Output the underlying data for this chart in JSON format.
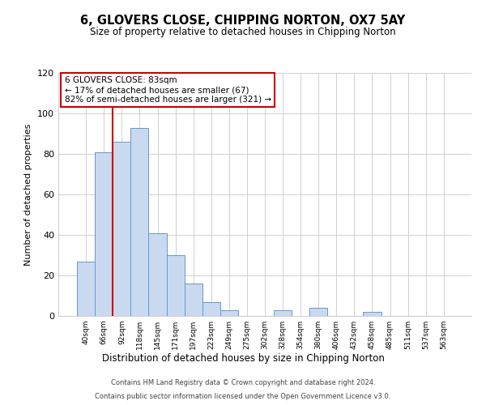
{
  "title": "6, GLOVERS CLOSE, CHIPPING NORTON, OX7 5AY",
  "subtitle": "Size of property relative to detached houses in Chipping Norton",
  "xlabel": "Distribution of detached houses by size in Chipping Norton",
  "ylabel": "Number of detached properties",
  "bin_labels": [
    "40sqm",
    "66sqm",
    "92sqm",
    "118sqm",
    "145sqm",
    "171sqm",
    "197sqm",
    "223sqm",
    "249sqm",
    "275sqm",
    "302sqm",
    "328sqm",
    "354sqm",
    "380sqm",
    "406sqm",
    "432sqm",
    "458sqm",
    "485sqm",
    "511sqm",
    "537sqm",
    "563sqm"
  ],
  "bar_values": [
    27,
    81,
    86,
    93,
    41,
    30,
    16,
    7,
    3,
    0,
    0,
    3,
    0,
    4,
    0,
    0,
    2,
    0,
    0,
    0,
    0
  ],
  "bar_color": "#c9d9f0",
  "bar_edge_color": "#6699cc",
  "vline_color": "#cc0000",
  "ylim": [
    0,
    120
  ],
  "yticks": [
    0,
    20,
    40,
    60,
    80,
    100,
    120
  ],
  "annotation_title": "6 GLOVERS CLOSE: 83sqm",
  "annotation_line1": "← 17% of detached houses are smaller (67)",
  "annotation_line2": "82% of semi-detached houses are larger (321) →",
  "annotation_box_color": "#cc0000",
  "footer_line1": "Contains HM Land Registry data © Crown copyright and database right 2024.",
  "footer_line2": "Contains public sector information licensed under the Open Government Licence v3.0.",
  "background_color": "#ffffff",
  "grid_color": "#d0d0d0"
}
